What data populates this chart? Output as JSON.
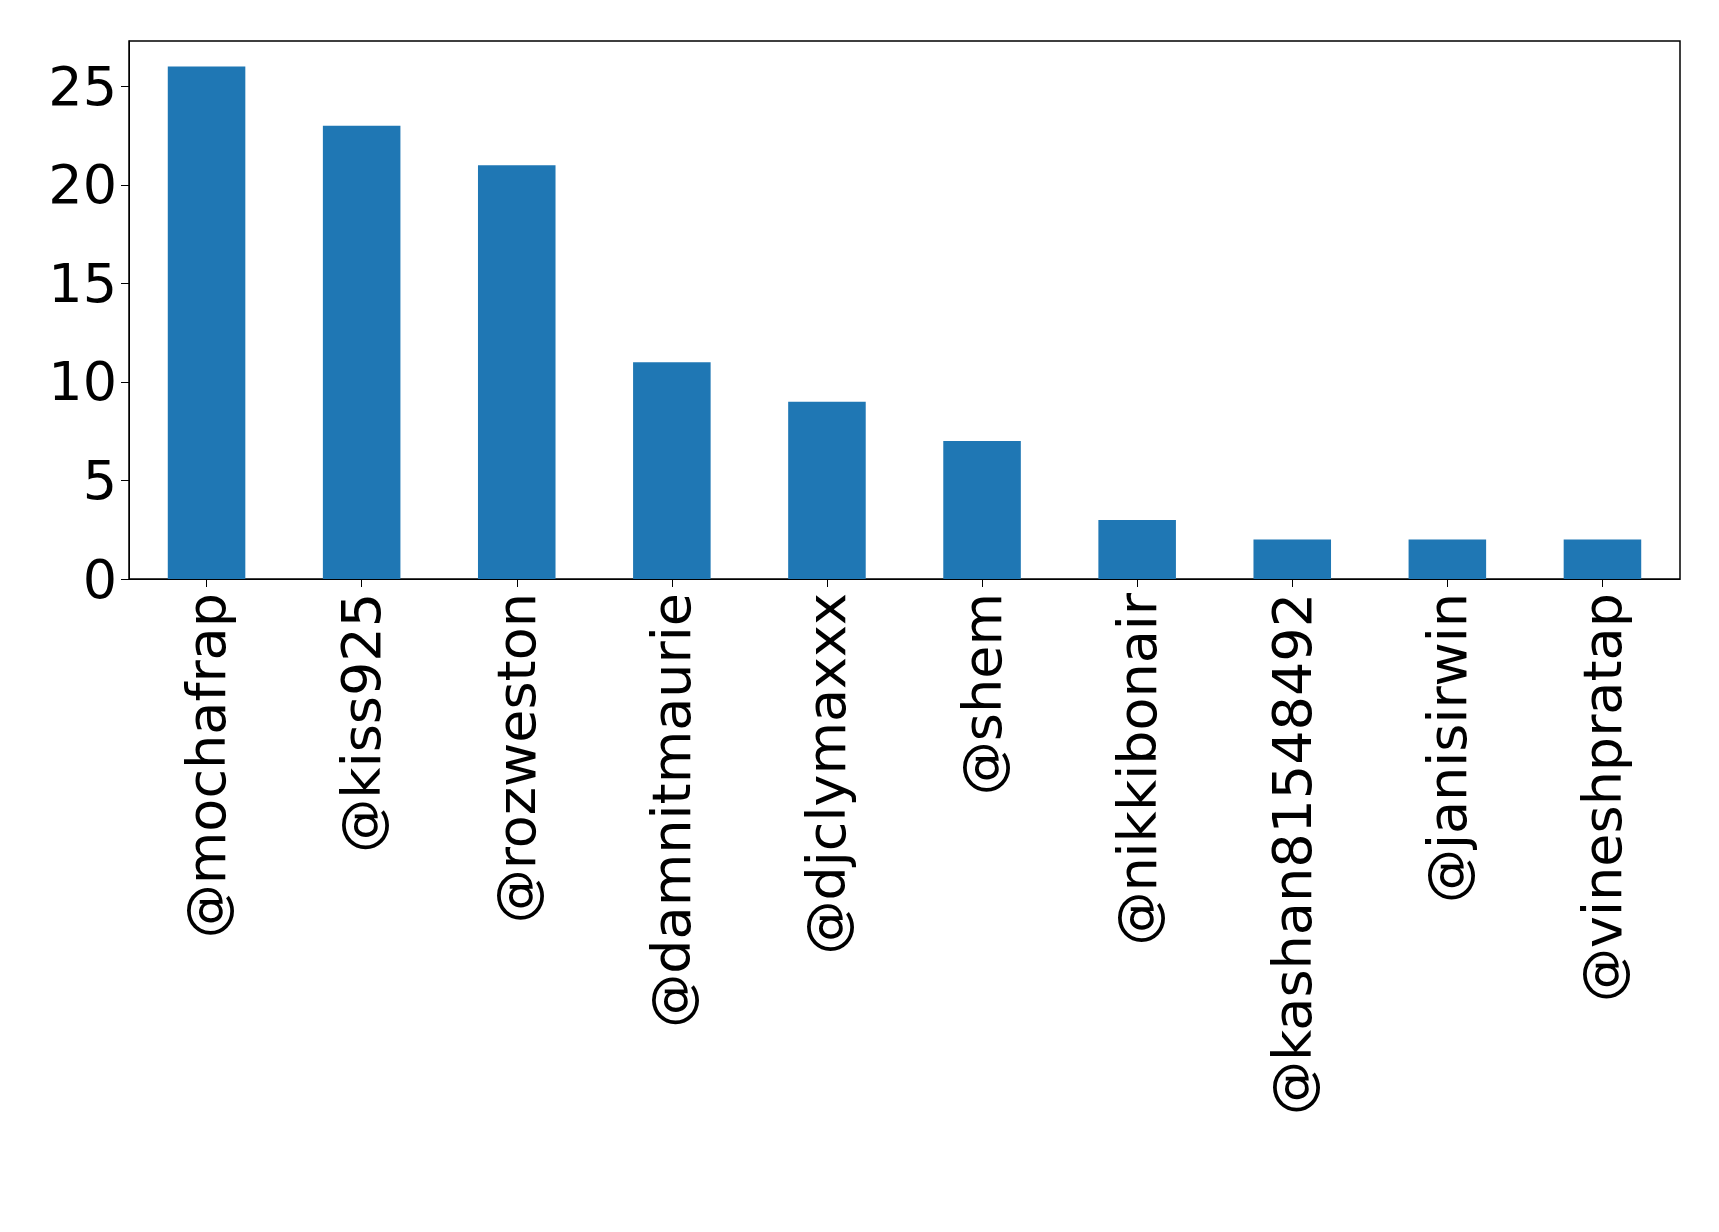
{
  "chart_data": {
    "type": "bar",
    "categories": [
      "@mochafrap",
      "@kiss925",
      "@rozweston",
      "@damnitmaurie",
      "@djclymaxxx",
      "@shem",
      "@nikkibonair",
      "@kashan81548492",
      "@janisirwin",
      "@vineshpratap"
    ],
    "values": [
      26,
      23,
      21,
      11,
      9,
      7,
      3,
      2,
      2,
      2
    ],
    "color": "#1f77b4",
    "ylim": [
      0,
      27.3
    ],
    "yticks": [
      0,
      5,
      10,
      15,
      20,
      25
    ],
    "grid": false
  }
}
